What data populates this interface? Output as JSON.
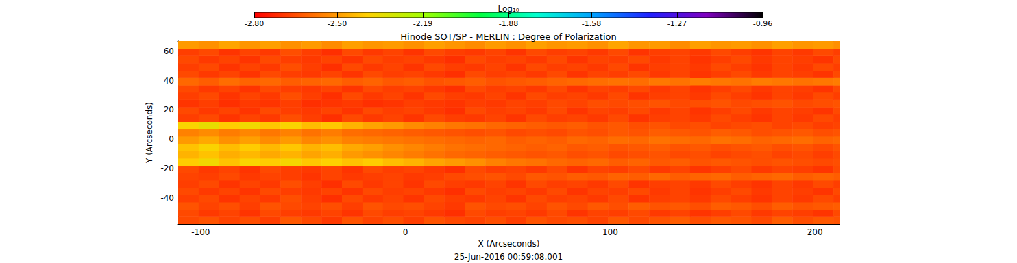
{
  "chart_data": {
    "type": "heatmap",
    "title": "Hinode SOT/SP - MERLIN : Degree of Polarization",
    "subtitle": "25-Jun-2016 00:59:08.001",
    "x_label": "X (Arcseconds)",
    "y_label": "Y (Arcseconds)",
    "xlim": [
      -111,
      212
    ],
    "xticks": [
      -100,
      0,
      100,
      200
    ],
    "ylim": [
      -58,
      67
    ],
    "yticks": [
      -40,
      -20,
      0,
      20,
      40,
      60
    ],
    "cells": {
      "x": [
        -106,
        -96,
        -86,
        -76,
        -66,
        -56,
        -46,
        -36,
        -26,
        -16,
        -6,
        4,
        14,
        24,
        34,
        44,
        54,
        64,
        74,
        84,
        94,
        104,
        114,
        124,
        134,
        144,
        154,
        164,
        174,
        184,
        194,
        204,
        214
      ],
      "y": [
        -55.5,
        -50.5,
        -45.5,
        -40.5,
        -35.5,
        -30.5,
        -25.5,
        -20.5,
        -15.5,
        -10.5,
        -5.5,
        -0.5,
        4.5,
        9.5,
        14.5,
        19.5,
        24.5,
        29.5,
        34.5,
        39.5,
        44.5,
        49.5,
        54.5,
        59.5,
        64.5
      ],
      "values": [
        [
          -2.66,
          -2.64,
          -2.67,
          -2.65,
          -2.68,
          -2.63,
          -2.66,
          -2.69,
          -2.64,
          -2.67,
          -2.65,
          -2.68,
          -2.64,
          -2.66,
          -2.67,
          -2.65,
          -2.68,
          -2.64,
          -2.66,
          -2.65,
          -2.67,
          -2.63,
          -2.66,
          -2.64,
          -2.62,
          -2.65,
          -2.63,
          -2.64,
          -2.66,
          -2.62,
          -2.65,
          -2.63,
          -2.64
        ],
        [
          -2.66,
          -2.69,
          -2.67,
          -2.7,
          -2.66,
          -2.68,
          -2.69,
          -2.67,
          -2.7,
          -2.66,
          -2.68,
          -2.67,
          -2.69,
          -2.71,
          -2.66,
          -2.68,
          -2.67,
          -2.69,
          -2.66,
          -2.7,
          -2.67,
          -2.68,
          -2.66,
          -2.69,
          -2.67,
          -2.7,
          -2.68,
          -2.66,
          -2.69,
          -2.67,
          -2.68,
          -2.7,
          -2.66
        ],
        [
          -2.64,
          -2.67,
          -2.65,
          -2.68,
          -2.64,
          -2.66,
          -2.67,
          -2.65,
          -2.68,
          -2.64,
          -2.66,
          -2.65,
          -2.67,
          -2.69,
          -2.64,
          -2.66,
          -2.65,
          -2.67,
          -2.64,
          -2.66,
          -2.63,
          -2.65,
          -2.62,
          -2.64,
          -2.63,
          -2.65,
          -2.62,
          -2.63,
          -2.65,
          -2.62,
          -2.64,
          -2.63,
          -2.62
        ],
        [
          -2.68,
          -2.66,
          -2.7,
          -2.67,
          -2.69,
          -2.65,
          -2.68,
          -2.71,
          -2.66,
          -2.69,
          -2.67,
          -2.7,
          -2.66,
          -2.68,
          -2.69,
          -2.67,
          -2.7,
          -2.66,
          -2.68,
          -2.67,
          -2.69,
          -2.66,
          -2.7,
          -2.68,
          -2.67,
          -2.69,
          -2.66,
          -2.68,
          -2.7,
          -2.67,
          -2.69,
          -2.66,
          -2.68
        ],
        [
          -2.66,
          -2.69,
          -2.67,
          -2.7,
          -2.66,
          -2.68,
          -2.69,
          -2.67,
          -2.7,
          -2.66,
          -2.68,
          -2.67,
          -2.69,
          -2.71,
          -2.66,
          -2.68,
          -2.67,
          -2.69,
          -2.66,
          -2.7,
          -2.67,
          -2.68,
          -2.66,
          -2.69,
          -2.67,
          -2.7,
          -2.68,
          -2.66,
          -2.69,
          -2.67,
          -2.68,
          -2.7,
          -2.66
        ],
        [
          -2.68,
          -2.66,
          -2.7,
          -2.67,
          -2.69,
          -2.65,
          -2.68,
          -2.71,
          -2.66,
          -2.69,
          -2.67,
          -2.7,
          -2.66,
          -2.68,
          -2.69,
          -2.67,
          -2.7,
          -2.66,
          -2.68,
          -2.67,
          -2.69,
          -2.66,
          -2.7,
          -2.68,
          -2.67,
          -2.69,
          -2.66,
          -2.68,
          -2.7,
          -2.67,
          -2.69,
          -2.66,
          -2.68
        ],
        [
          -2.67,
          -2.68,
          -2.66,
          -2.69,
          -2.67,
          -2.68,
          -2.7,
          -2.67,
          -2.69,
          -2.68,
          -2.67,
          -2.69,
          -2.68,
          -2.66,
          -2.65,
          -2.64,
          -2.66,
          -2.63,
          -2.64,
          -2.62,
          -2.63,
          -2.61,
          -2.62,
          -2.6,
          -2.62,
          -2.61,
          -2.6,
          -2.62,
          -2.61,
          -2.6,
          -2.62,
          -2.61,
          -2.62
        ],
        [
          -2.66,
          -2.69,
          -2.67,
          -2.7,
          -2.66,
          -2.68,
          -2.69,
          -2.67,
          -2.7,
          -2.66,
          -2.68,
          -2.67,
          -2.69,
          -2.71,
          -2.66,
          -2.68,
          -2.67,
          -2.69,
          -2.66,
          -2.7,
          -2.67,
          -2.68,
          -2.66,
          -2.69,
          -2.67,
          -2.7,
          -2.68,
          -2.66,
          -2.69,
          -2.67,
          -2.68,
          -2.7,
          -2.66
        ],
        [
          -2.4,
          -2.36,
          -2.42,
          -2.38,
          -2.4,
          -2.37,
          -2.41,
          -2.39,
          -2.42,
          -2.4,
          -2.43,
          -2.45,
          -2.48,
          -2.5,
          -2.52,
          -2.55,
          -2.57,
          -2.58,
          -2.6,
          -2.61,
          -2.6,
          -2.62,
          -2.61,
          -2.63,
          -2.62,
          -2.64,
          -2.63,
          -2.64,
          -2.65,
          -2.64,
          -2.65,
          -2.66,
          -2.65
        ],
        [
          -2.45,
          -2.42,
          -2.46,
          -2.44,
          -2.47,
          -2.45,
          -2.48,
          -2.46,
          -2.5,
          -2.52,
          -2.54,
          -2.56,
          -2.58,
          -2.6,
          -2.61,
          -2.62,
          -2.63,
          -2.64,
          -2.63,
          -2.65,
          -2.64,
          -2.66,
          -2.65,
          -2.64,
          -2.66,
          -2.65,
          -2.67,
          -2.66,
          -2.65,
          -2.67,
          -2.66,
          -2.68,
          -2.66
        ],
        [
          -2.42,
          -2.38,
          -2.43,
          -2.4,
          -2.44,
          -2.41,
          -2.45,
          -2.43,
          -2.47,
          -2.49,
          -2.52,
          -2.54,
          -2.56,
          -2.58,
          -2.59,
          -2.6,
          -2.61,
          -2.62,
          -2.61,
          -2.63,
          -2.62,
          -2.64,
          -2.63,
          -2.62,
          -2.64,
          -2.63,
          -2.65,
          -2.64,
          -2.63,
          -2.65,
          -2.64,
          -2.66,
          -2.64
        ],
        [
          -2.5,
          -2.47,
          -2.52,
          -2.49,
          -2.53,
          -2.5,
          -2.54,
          -2.52,
          -2.55,
          -2.56,
          -2.57,
          -2.58,
          -2.59,
          -2.6,
          -2.61,
          -2.6,
          -2.62,
          -2.61,
          -2.62,
          -2.6,
          -2.61,
          -2.59,
          -2.6,
          -2.58,
          -2.59,
          -2.6,
          -2.58,
          -2.59,
          -2.61,
          -2.6,
          -2.59,
          -2.61,
          -2.6
        ],
        [
          -2.55,
          -2.53,
          -2.56,
          -2.54,
          -2.57,
          -2.55,
          -2.58,
          -2.56,
          -2.59,
          -2.6,
          -2.61,
          -2.62,
          -2.63,
          -2.64,
          -2.65,
          -2.64,
          -2.66,
          -2.65,
          -2.66,
          -2.64,
          -2.65,
          -2.63,
          -2.64,
          -2.62,
          -2.63,
          -2.64,
          -2.62,
          -2.63,
          -2.65,
          -2.64,
          -2.63,
          -2.65,
          -2.64
        ],
        [
          -2.38,
          -2.34,
          -2.4,
          -2.36,
          -2.41,
          -2.38,
          -2.43,
          -2.41,
          -2.45,
          -2.48,
          -2.5,
          -2.53,
          -2.55,
          -2.57,
          -2.58,
          -2.6,
          -2.61,
          -2.62,
          -2.63,
          -2.62,
          -2.64,
          -2.63,
          -2.65,
          -2.64,
          -2.66,
          -2.65,
          -2.67,
          -2.66,
          -2.65,
          -2.67,
          -2.66,
          -2.68,
          -2.67
        ],
        [
          -2.68,
          -2.66,
          -2.7,
          -2.67,
          -2.69,
          -2.65,
          -2.68,
          -2.71,
          -2.66,
          -2.69,
          -2.67,
          -2.7,
          -2.66,
          -2.68,
          -2.69,
          -2.67,
          -2.7,
          -2.66,
          -2.68,
          -2.67,
          -2.69,
          -2.66,
          -2.7,
          -2.68,
          -2.67,
          -2.69,
          -2.66,
          -2.68,
          -2.7,
          -2.67,
          -2.69,
          -2.66,
          -2.68
        ],
        [
          -2.66,
          -2.69,
          -2.67,
          -2.7,
          -2.66,
          -2.68,
          -2.69,
          -2.67,
          -2.7,
          -2.66,
          -2.68,
          -2.67,
          -2.69,
          -2.71,
          -2.66,
          -2.68,
          -2.67,
          -2.69,
          -2.66,
          -2.7,
          -2.67,
          -2.68,
          -2.66,
          -2.69,
          -2.67,
          -2.7,
          -2.68,
          -2.66,
          -2.69,
          -2.67,
          -2.68,
          -2.7,
          -2.66
        ],
        [
          -2.7,
          -2.68,
          -2.71,
          -2.69,
          -2.7,
          -2.68,
          -2.71,
          -2.7,
          -2.69,
          -2.71,
          -2.7,
          -2.68,
          -2.69,
          -2.7,
          -2.68,
          -2.69,
          -2.67,
          -2.68,
          -2.66,
          -2.67,
          -2.65,
          -2.66,
          -2.65,
          -2.64,
          -2.66,
          -2.65,
          -2.64,
          -2.66,
          -2.65,
          -2.64,
          -2.66,
          -2.65,
          -2.64
        ],
        [
          -2.68,
          -2.66,
          -2.7,
          -2.67,
          -2.69,
          -2.65,
          -2.68,
          -2.71,
          -2.66,
          -2.69,
          -2.67,
          -2.7,
          -2.66,
          -2.68,
          -2.69,
          -2.67,
          -2.7,
          -2.66,
          -2.68,
          -2.67,
          -2.69,
          -2.66,
          -2.7,
          -2.68,
          -2.67,
          -2.69,
          -2.66,
          -2.68,
          -2.7,
          -2.67,
          -2.69,
          -2.66,
          -2.68
        ],
        [
          -2.66,
          -2.69,
          -2.67,
          -2.7,
          -2.66,
          -2.68,
          -2.69,
          -2.67,
          -2.7,
          -2.66,
          -2.68,
          -2.67,
          -2.69,
          -2.71,
          -2.66,
          -2.68,
          -2.67,
          -2.69,
          -2.66,
          -2.7,
          -2.67,
          -2.68,
          -2.66,
          -2.69,
          -2.67,
          -2.7,
          -2.68,
          -2.66,
          -2.69,
          -2.67,
          -2.68,
          -2.7,
          -2.66
        ],
        [
          -2.6,
          -2.62,
          -2.59,
          -2.61,
          -2.6,
          -2.62,
          -2.61,
          -2.6,
          -2.62,
          -2.61,
          -2.63,
          -2.62,
          -2.64,
          -2.63,
          -2.62,
          -2.64,
          -2.63,
          -2.62,
          -2.61,
          -2.6,
          -2.59,
          -2.58,
          -2.59,
          -2.57,
          -2.58,
          -2.56,
          -2.57,
          -2.58,
          -2.56,
          -2.57,
          -2.58,
          -2.57,
          -2.56
        ],
        [
          -2.66,
          -2.69,
          -2.67,
          -2.7,
          -2.66,
          -2.68,
          -2.69,
          -2.67,
          -2.7,
          -2.66,
          -2.68,
          -2.67,
          -2.69,
          -2.71,
          -2.66,
          -2.68,
          -2.67,
          -2.69,
          -2.66,
          -2.7,
          -2.67,
          -2.68,
          -2.66,
          -2.69,
          -2.67,
          -2.7,
          -2.68,
          -2.66,
          -2.69,
          -2.67,
          -2.68,
          -2.7,
          -2.66
        ],
        [
          -2.68,
          -2.66,
          -2.7,
          -2.67,
          -2.69,
          -2.65,
          -2.68,
          -2.71,
          -2.66,
          -2.69,
          -2.67,
          -2.7,
          -2.66,
          -2.68,
          -2.69,
          -2.67,
          -2.7,
          -2.66,
          -2.68,
          -2.67,
          -2.69,
          -2.66,
          -2.7,
          -2.68,
          -2.67,
          -2.69,
          -2.66,
          -2.68,
          -2.7,
          -2.67,
          -2.69,
          -2.66,
          -2.68
        ],
        [
          -2.66,
          -2.69,
          -2.67,
          -2.7,
          -2.66,
          -2.68,
          -2.69,
          -2.67,
          -2.7,
          -2.66,
          -2.68,
          -2.67,
          -2.69,
          -2.71,
          -2.66,
          -2.68,
          -2.67,
          -2.69,
          -2.66,
          -2.7,
          -2.67,
          -2.68,
          -2.66,
          -2.69,
          -2.67,
          -2.7,
          -2.68,
          -2.66,
          -2.69,
          -2.67,
          -2.68,
          -2.7,
          -2.66
        ],
        [
          -2.68,
          -2.66,
          -2.7,
          -2.67,
          -2.69,
          -2.65,
          -2.68,
          -2.71,
          -2.66,
          -2.69,
          -2.67,
          -2.7,
          -2.66,
          -2.68,
          -2.69,
          -2.67,
          -2.7,
          -2.66,
          -2.68,
          -2.67,
          -2.69,
          -2.66,
          -2.7,
          -2.68,
          -2.67,
          -2.69,
          -2.66,
          -2.68,
          -2.7,
          -2.67,
          -2.69,
          -2.66,
          -2.68
        ],
        [
          -2.5,
          -2.52,
          -2.48,
          -2.51,
          -2.49,
          -2.52,
          -2.5,
          -2.53,
          -2.49,
          -2.51,
          -2.5,
          -2.52,
          -2.49,
          -2.51,
          -2.53,
          -2.5,
          -2.52,
          -2.49,
          -2.51,
          -2.5,
          -2.52,
          -2.48,
          -2.51,
          -2.5,
          -2.53,
          -2.49,
          -2.51,
          -2.5,
          -2.52,
          -2.49,
          -2.51,
          -2.5,
          -2.52
        ]
      ]
    },
    "colorbar": {
      "title": "Log₁₀",
      "range": [
        -2.8,
        -0.96
      ],
      "ticks": [
        {
          "value": -2.8,
          "label": "-2.80"
        },
        {
          "value": -2.5,
          "label": "-2.50"
        },
        -2.19,
        -1.88,
        -1.58,
        -1.27,
        -0.96
      ]
    }
  }
}
